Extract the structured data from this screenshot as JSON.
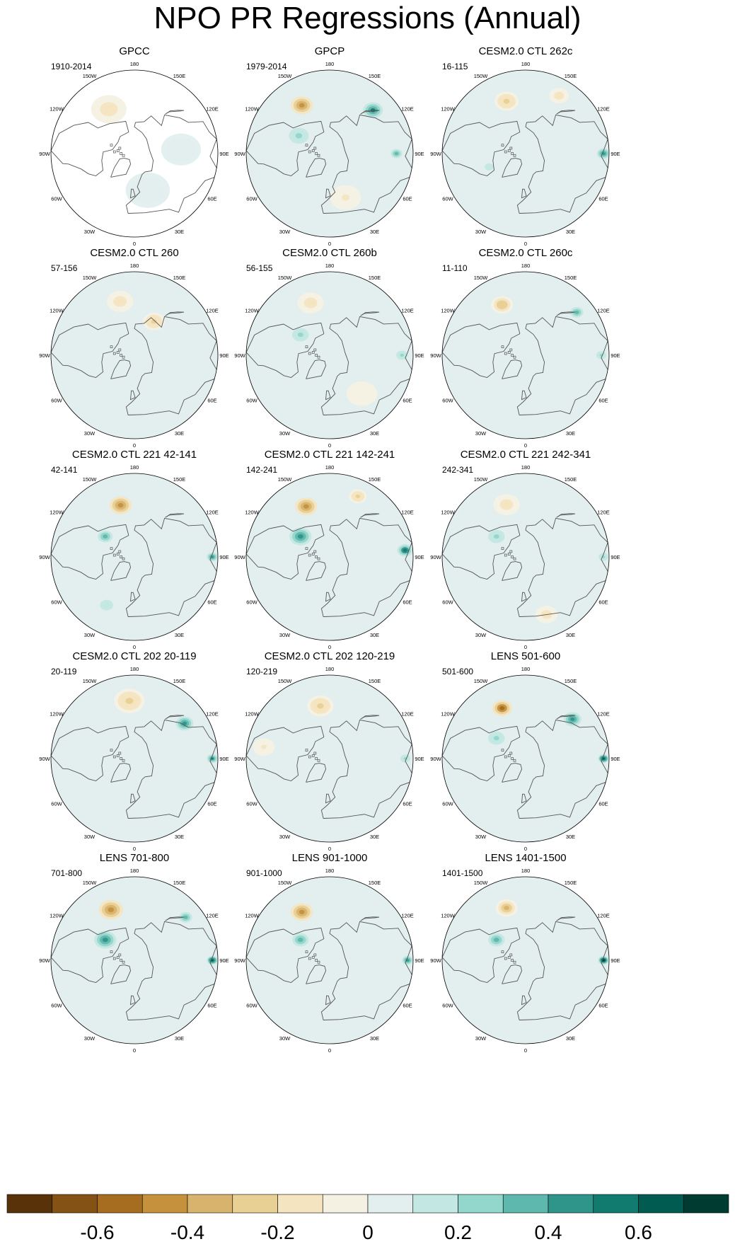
{
  "title": "NPO PR Regressions (Annual)",
  "colors": {
    "palette": [
      "#5a3209",
      "#855215",
      "#a66d20",
      "#c5913d",
      "#d7b36e",
      "#e8cf93",
      "#f4e4c0",
      "#f4f1e3",
      "#e3eeee",
      "#c3e7e2",
      "#93d6cb",
      "#5fb8ad",
      "#2f948a",
      "#117b6f",
      "#015b50",
      "#003b31"
    ],
    "land_outline": "#555555",
    "panel_border": "#000000"
  },
  "lon_labels": [
    "180",
    "150E",
    "120E",
    "90E",
    "60E",
    "30E",
    "0",
    "30W",
    "60W",
    "90W",
    "120W",
    "150W"
  ],
  "panels": [
    {
      "title": "GPCC",
      "period": "1910-2014",
      "masked": true,
      "features": [
        {
          "lat": 44,
          "lon": -150,
          "value": -0.15,
          "spread": 16
        },
        {
          "lat": 55,
          "lon": 20,
          "value": 0.08,
          "spread": 20
        },
        {
          "lat": 48,
          "lon": 95,
          "value": 0.05,
          "spread": 18
        }
      ]
    },
    {
      "title": "GPCP",
      "period": "1979-2014",
      "masked": false,
      "features": [
        {
          "lat": 40,
          "lon": -150,
          "value": -0.48,
          "spread": 10
        },
        {
          "lat": 35,
          "lon": 135,
          "value": 0.5,
          "spread": 9
        },
        {
          "lat": 30,
          "lon": 90,
          "value": 0.3,
          "spread": 7
        },
        {
          "lat": 58,
          "lon": -120,
          "value": 0.22,
          "spread": 12
        },
        {
          "lat": 48,
          "lon": 20,
          "value": -0.12,
          "spread": 14
        }
      ]
    },
    {
      "title": "CESM2.0 CTL 262c",
      "period": "16-115",
      "masked": false,
      "features": [
        {
          "lat": 40,
          "lon": -160,
          "value": -0.25,
          "spread": 11
        },
        {
          "lat": 30,
          "lon": 150,
          "value": -0.15,
          "spread": 9
        },
        {
          "lat": 20,
          "lon": 90,
          "value": 0.4,
          "spread": 6
        },
        {
          "lat": 55,
          "lon": -70,
          "value": 0.1,
          "spread": 16
        }
      ]
    },
    {
      "title": "CESM2.0 CTL 260",
      "period": "57-156",
      "masked": false,
      "features": [
        {
          "lat": 40,
          "lon": -165,
          "value": -0.2,
          "spread": 12
        },
        {
          "lat": 55,
          "lon": 150,
          "value": -0.25,
          "spread": 10
        },
        {
          "lat": 60,
          "lon": 20,
          "value": 0.08,
          "spread": 18
        }
      ]
    },
    {
      "title": "CESM2.0 CTL 260b",
      "period": "56-155",
      "masked": false,
      "features": [
        {
          "lat": 40,
          "lon": -160,
          "value": -0.2,
          "spread": 12
        },
        {
          "lat": 58,
          "lon": -125,
          "value": 0.2,
          "spread": 10
        },
        {
          "lat": 25,
          "lon": 90,
          "value": 0.25,
          "spread": 7
        },
        {
          "lat": 45,
          "lon": 40,
          "value": -0.08,
          "spread": 14
        }
      ]
    },
    {
      "title": "CESM2.0 CTL 260c",
      "period": "11-110",
      "masked": false,
      "features": [
        {
          "lat": 40,
          "lon": -155,
          "value": -0.3,
          "spread": 10
        },
        {
          "lat": 30,
          "lon": 130,
          "value": 0.3,
          "spread": 8
        },
        {
          "lat": 22,
          "lon": 90,
          "value": 0.2,
          "spread": 6
        }
      ]
    },
    {
      "title": "CESM2.0 CTL 221 42-141",
      "period": "42-141",
      "masked": false,
      "features": [
        {
          "lat": 42,
          "lon": -165,
          "value": -0.45,
          "spread": 10
        },
        {
          "lat": 58,
          "lon": -125,
          "value": 0.35,
          "spread": 9
        },
        {
          "lat": 20,
          "lon": 90,
          "value": 0.4,
          "spread": 5
        },
        {
          "lat": 40,
          "lon": -30,
          "value": 0.15,
          "spread": 12
        }
      ]
    },
    {
      "title": "CESM2.0 CTL 221 142-241",
      "period": "142-241",
      "masked": false,
      "features": [
        {
          "lat": 40,
          "lon": -155,
          "value": -0.45,
          "spread": 10
        },
        {
          "lat": 58,
          "lon": -125,
          "value": 0.45,
          "spread": 10
        },
        {
          "lat": 22,
          "lon": 95,
          "value": 0.55,
          "spread": 7
        },
        {
          "lat": 30,
          "lon": 155,
          "value": -0.25,
          "spread": 8
        }
      ]
    },
    {
      "title": "CESM2.0 CTL 221 242-341",
      "period": "242-341",
      "masked": false,
      "features": [
        {
          "lat": 40,
          "lon": -160,
          "value": -0.2,
          "spread": 12
        },
        {
          "lat": 58,
          "lon": -125,
          "value": 0.25,
          "spread": 10
        },
        {
          "lat": 20,
          "lon": 90,
          "value": 0.2,
          "spread": 6
        },
        {
          "lat": 35,
          "lon": 20,
          "value": -0.15,
          "spread": 10
        }
      ]
    },
    {
      "title": "CESM2.0 CTL 202 20-119",
      "period": "20-119",
      "masked": false,
      "features": [
        {
          "lat": 38,
          "lon": -175,
          "value": -0.25,
          "spread": 14
        },
        {
          "lat": 35,
          "lon": 125,
          "value": 0.4,
          "spread": 8
        },
        {
          "lat": 20,
          "lon": 90,
          "value": 0.5,
          "spread": 5
        }
      ]
    },
    {
      "title": "CESM2.0 CTL 202 120-219",
      "period": "120-219",
      "masked": false,
      "features": [
        {
          "lat": 42,
          "lon": -170,
          "value": -0.25,
          "spread": 12
        },
        {
          "lat": 30,
          "lon": -100,
          "value": -0.12,
          "spread": 10
        },
        {
          "lat": 22,
          "lon": 90,
          "value": 0.2,
          "spread": 6
        }
      ]
    },
    {
      "title": "LENS 501-600",
      "period": "501-600",
      "masked": false,
      "features": [
        {
          "lat": 40,
          "lon": -155,
          "value": -0.55,
          "spread": 9
        },
        {
          "lat": 35,
          "lon": 130,
          "value": 0.45,
          "spread": 8
        },
        {
          "lat": 20,
          "lon": 90,
          "value": 0.6,
          "spread": 5
        },
        {
          "lat": 58,
          "lon": -125,
          "value": 0.25,
          "spread": 10
        }
      ]
    },
    {
      "title": "LENS 701-800",
      "period": "701-800",
      "masked": false,
      "features": [
        {
          "lat": 40,
          "lon": -155,
          "value": -0.45,
          "spread": 11
        },
        {
          "lat": 58,
          "lon": -125,
          "value": 0.45,
          "spread": 10
        },
        {
          "lat": 30,
          "lon": 130,
          "value": 0.35,
          "spread": 8
        },
        {
          "lat": 20,
          "lon": 90,
          "value": 0.65,
          "spread": 5
        }
      ]
    },
    {
      "title": "LENS 901-1000",
      "period": "901-1000",
      "masked": false,
      "features": [
        {
          "lat": 40,
          "lon": -150,
          "value": -0.5,
          "spread": 10
        },
        {
          "lat": 58,
          "lon": -125,
          "value": 0.3,
          "spread": 10
        },
        {
          "lat": 20,
          "lon": 90,
          "value": 0.45,
          "spread": 5
        }
      ]
    },
    {
      "title": "LENS 1401-1500",
      "period": "1401-1500",
      "masked": false,
      "features": [
        {
          "lat": 40,
          "lon": -160,
          "value": -0.35,
          "spread": 10
        },
        {
          "lat": 58,
          "lon": -125,
          "value": 0.35,
          "spread": 10
        },
        {
          "lat": 20,
          "lon": 90,
          "value": 0.7,
          "spread": 5
        }
      ]
    }
  ],
  "chart_data": {
    "type": "heatmap",
    "projection": "polar-stereographic (Northern Hemisphere)",
    "title": "NPO PR Regressions (Annual)",
    "colorbar": {
      "levels": [
        -0.7,
        -0.6,
        -0.5,
        -0.4,
        -0.3,
        -0.2,
        -0.1,
        0,
        0.1,
        0.2,
        0.3,
        0.4,
        0.5,
        0.6,
        0.7
      ],
      "tick_values": [
        -0.6,
        -0.4,
        -0.2,
        0,
        0.2,
        0.4,
        0.6
      ],
      "tick_labels": [
        "-0.6",
        "-0.4",
        "-0.2",
        "0",
        "0.2",
        "0.4",
        "0.6"
      ],
      "orientation": "horizontal",
      "placement": "bottom"
    },
    "panel_count": 15,
    "layout": "5 rows x 3 columns"
  }
}
